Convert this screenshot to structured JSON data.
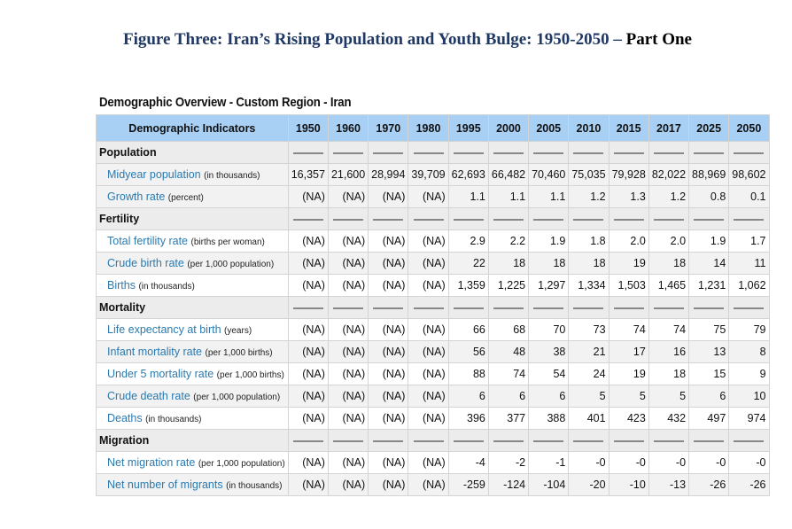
{
  "title": {
    "main": "Figure Three: Iran’s Rising Population and Youth Bulge: 1950-2050 –",
    "tail": "Part One"
  },
  "caption": "Demographic Overview - Custom Region - Iran",
  "table": {
    "header_label": "Demographic Indicators",
    "years": [
      "1950",
      "1960",
      "1970",
      "1980",
      "1995",
      "2000",
      "2005",
      "2010",
      "2015",
      "2017",
      "2025",
      "2050"
    ],
    "sections": [
      {
        "name": "Population",
        "rows": [
          {
            "label": "Midyear population",
            "unit": "(in thousands)",
            "values": [
              "16,357",
              "21,600",
              "28,994",
              "39,709",
              "62,693",
              "66,482",
              "70,460",
              "75,035",
              "79,928",
              "82,022",
              "88,969",
              "98,602"
            ]
          },
          {
            "label": "Growth rate",
            "unit": "(percent)",
            "values": [
              "(NA)",
              "(NA)",
              "(NA)",
              "(NA)",
              "1.1",
              "1.1",
              "1.1",
              "1.2",
              "1.3",
              "1.2",
              "0.8",
              "0.1"
            ]
          }
        ]
      },
      {
        "name": "Fertility",
        "rows": [
          {
            "label": "Total fertility rate",
            "unit": "(births per woman)",
            "values": [
              "(NA)",
              "(NA)",
              "(NA)",
              "(NA)",
              "2.9",
              "2.2",
              "1.9",
              "1.8",
              "2.0",
              "2.0",
              "1.9",
              "1.7"
            ]
          },
          {
            "label": "Crude birth rate",
            "unit": "(per 1,000 population)",
            "values": [
              "(NA)",
              "(NA)",
              "(NA)",
              "(NA)",
              "22",
              "18",
              "18",
              "18",
              "19",
              "18",
              "14",
              "11"
            ]
          },
          {
            "label": "Births",
            "unit": "(in thousands)",
            "values": [
              "(NA)",
              "(NA)",
              "(NA)",
              "(NA)",
              "1,359",
              "1,225",
              "1,297",
              "1,334",
              "1,503",
              "1,465",
              "1,231",
              "1,062"
            ]
          }
        ]
      },
      {
        "name": "Mortality",
        "rows": [
          {
            "label": "Life expectancy at birth",
            "unit": "(years)",
            "values": [
              "(NA)",
              "(NA)",
              "(NA)",
              "(NA)",
              "66",
              "68",
              "70",
              "73",
              "74",
              "74",
              "75",
              "79"
            ]
          },
          {
            "label": "Infant mortality rate",
            "unit": "(per 1,000 births)",
            "values": [
              "(NA)",
              "(NA)",
              "(NA)",
              "(NA)",
              "56",
              "48",
              "38",
              "21",
              "17",
              "16",
              "13",
              "8"
            ]
          },
          {
            "label": "Under 5 mortality rate",
            "unit": "(per 1,000 births)",
            "values": [
              "(NA)",
              "(NA)",
              "(NA)",
              "(NA)",
              "88",
              "74",
              "54",
              "24",
              "19",
              "18",
              "15",
              "9"
            ]
          },
          {
            "label": "Crude death rate",
            "unit": "(per 1,000 population)",
            "values": [
              "(NA)",
              "(NA)",
              "(NA)",
              "(NA)",
              "6",
              "6",
              "6",
              "5",
              "5",
              "5",
              "6",
              "10"
            ]
          },
          {
            "label": "Deaths",
            "unit": "(in thousands)",
            "values": [
              "(NA)",
              "(NA)",
              "(NA)",
              "(NA)",
              "396",
              "377",
              "388",
              "401",
              "423",
              "432",
              "497",
              "974"
            ]
          }
        ]
      },
      {
        "name": "Migration",
        "rows": [
          {
            "label": "Net migration rate",
            "unit": "(per 1,000 population)",
            "values": [
              "(NA)",
              "(NA)",
              "(NA)",
              "(NA)",
              "-4",
              "-2",
              "-1",
              "-0",
              "-0",
              "-0",
              "-0",
              "-0"
            ]
          },
          {
            "label": "Net number of migrants",
            "unit": "(in thousands)",
            "values": [
              "(NA)",
              "(NA)",
              "(NA)",
              "(NA)",
              "-259",
              "-124",
              "-104",
              "-20",
              "-10",
              "-13",
              "-26",
              "-26"
            ]
          }
        ]
      }
    ]
  }
}
